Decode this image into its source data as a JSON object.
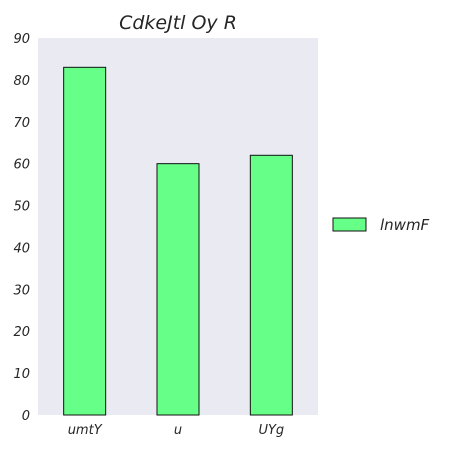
{
  "chart_data": {
    "type": "bar",
    "title": "CdkeJtl Oy R",
    "xlabel": "",
    "ylabel": "",
    "categories": [
      "umtY",
      "u",
      "UYg"
    ],
    "series": [
      {
        "name": "lnwmF",
        "values": [
          83,
          60,
          62
        ]
      }
    ],
    "ylim": [
      0,
      90
    ],
    "yticks": [
      0,
      10,
      20,
      30,
      40,
      50,
      60,
      70,
      80,
      90
    ],
    "grid": false,
    "legend": "right",
    "colors": {
      "plot_background": "#eaeaf2",
      "bar_fill": "#66ff88",
      "bar_edge": "#111111"
    }
  }
}
